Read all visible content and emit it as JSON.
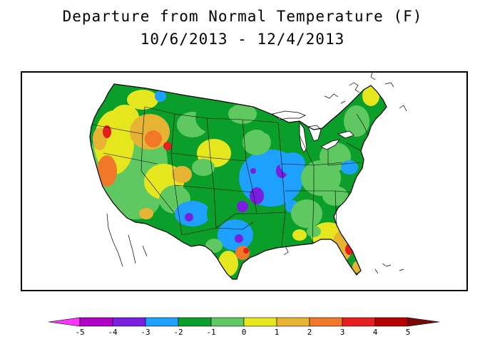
{
  "title_line1": "Departure from Normal Temperature (F)",
  "title_line2": "10/6/2013 - 12/4/2013",
  "colorbar": {
    "tick_labels": [
      "-5",
      "-4",
      "-3",
      "-2",
      "-1",
      "0",
      "1",
      "2",
      "3",
      "4",
      "5"
    ],
    "bins": [
      {
        "range": "< -5",
        "color": "#ff33ff"
      },
      {
        "range": "-5 to -4",
        "color": "#b000c8"
      },
      {
        "range": "-4 to -3",
        "color": "#7a1fe0"
      },
      {
        "range": "-3 to -2",
        "color": "#1ea0ff"
      },
      {
        "range": "-2 to -1",
        "color": "#0a9f2a"
      },
      {
        "range": "-1 to 0",
        "color": "#60c860"
      },
      {
        "range": "0 to 1",
        "color": "#e6e61e"
      },
      {
        "range": "1 to 2",
        "color": "#e6b432"
      },
      {
        "range": "2 to 3",
        "color": "#f07828"
      },
      {
        "range": "3 to 4",
        "color": "#e61e1e"
      },
      {
        "range": "4 to 5",
        "color": "#b40000"
      },
      {
        "range": "> 5",
        "color": "#7a0a0a"
      }
    ]
  }
}
